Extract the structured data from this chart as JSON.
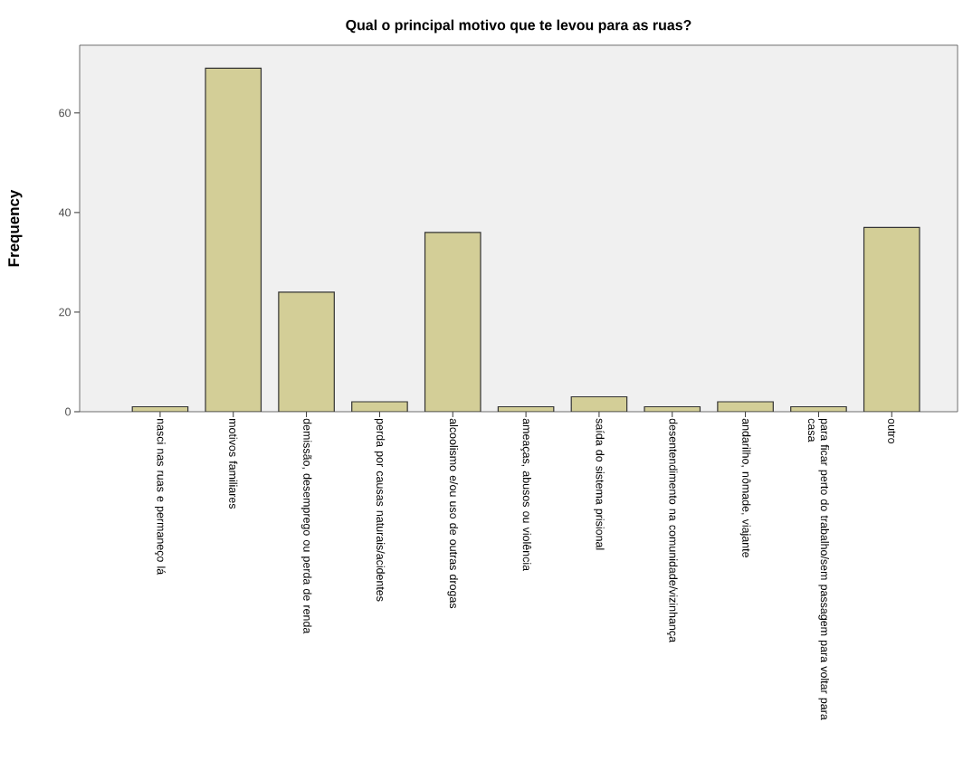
{
  "chart_data": {
    "type": "bar",
    "title": "Qual o principal motivo que te levou para as ruas?",
    "ylabel": "Frequency",
    "categories": [
      "nasci nas ruas e permaneço lá",
      "motivos familiares",
      "demissão, desemprego ou perda de renda",
      "perda por causas naturais/acidentes",
      "alcoolismo e/ou uso de outras drogas",
      "ameaças, abusos ou violência",
      "saída do sistema prisional",
      "desentendimento na comunidade/vizinhança",
      "andarilho, nômade, viajante",
      "para ficar perto do trabalho/sem passagem para voltar para casa",
      "outro"
    ],
    "values": [
      1,
      69,
      24,
      2,
      36,
      1,
      3,
      1,
      2,
      1,
      37
    ],
    "color": "#d3ce97",
    "ylim": [
      0,
      73.6
    ],
    "yticks": [
      0,
      20,
      40,
      60
    ]
  }
}
